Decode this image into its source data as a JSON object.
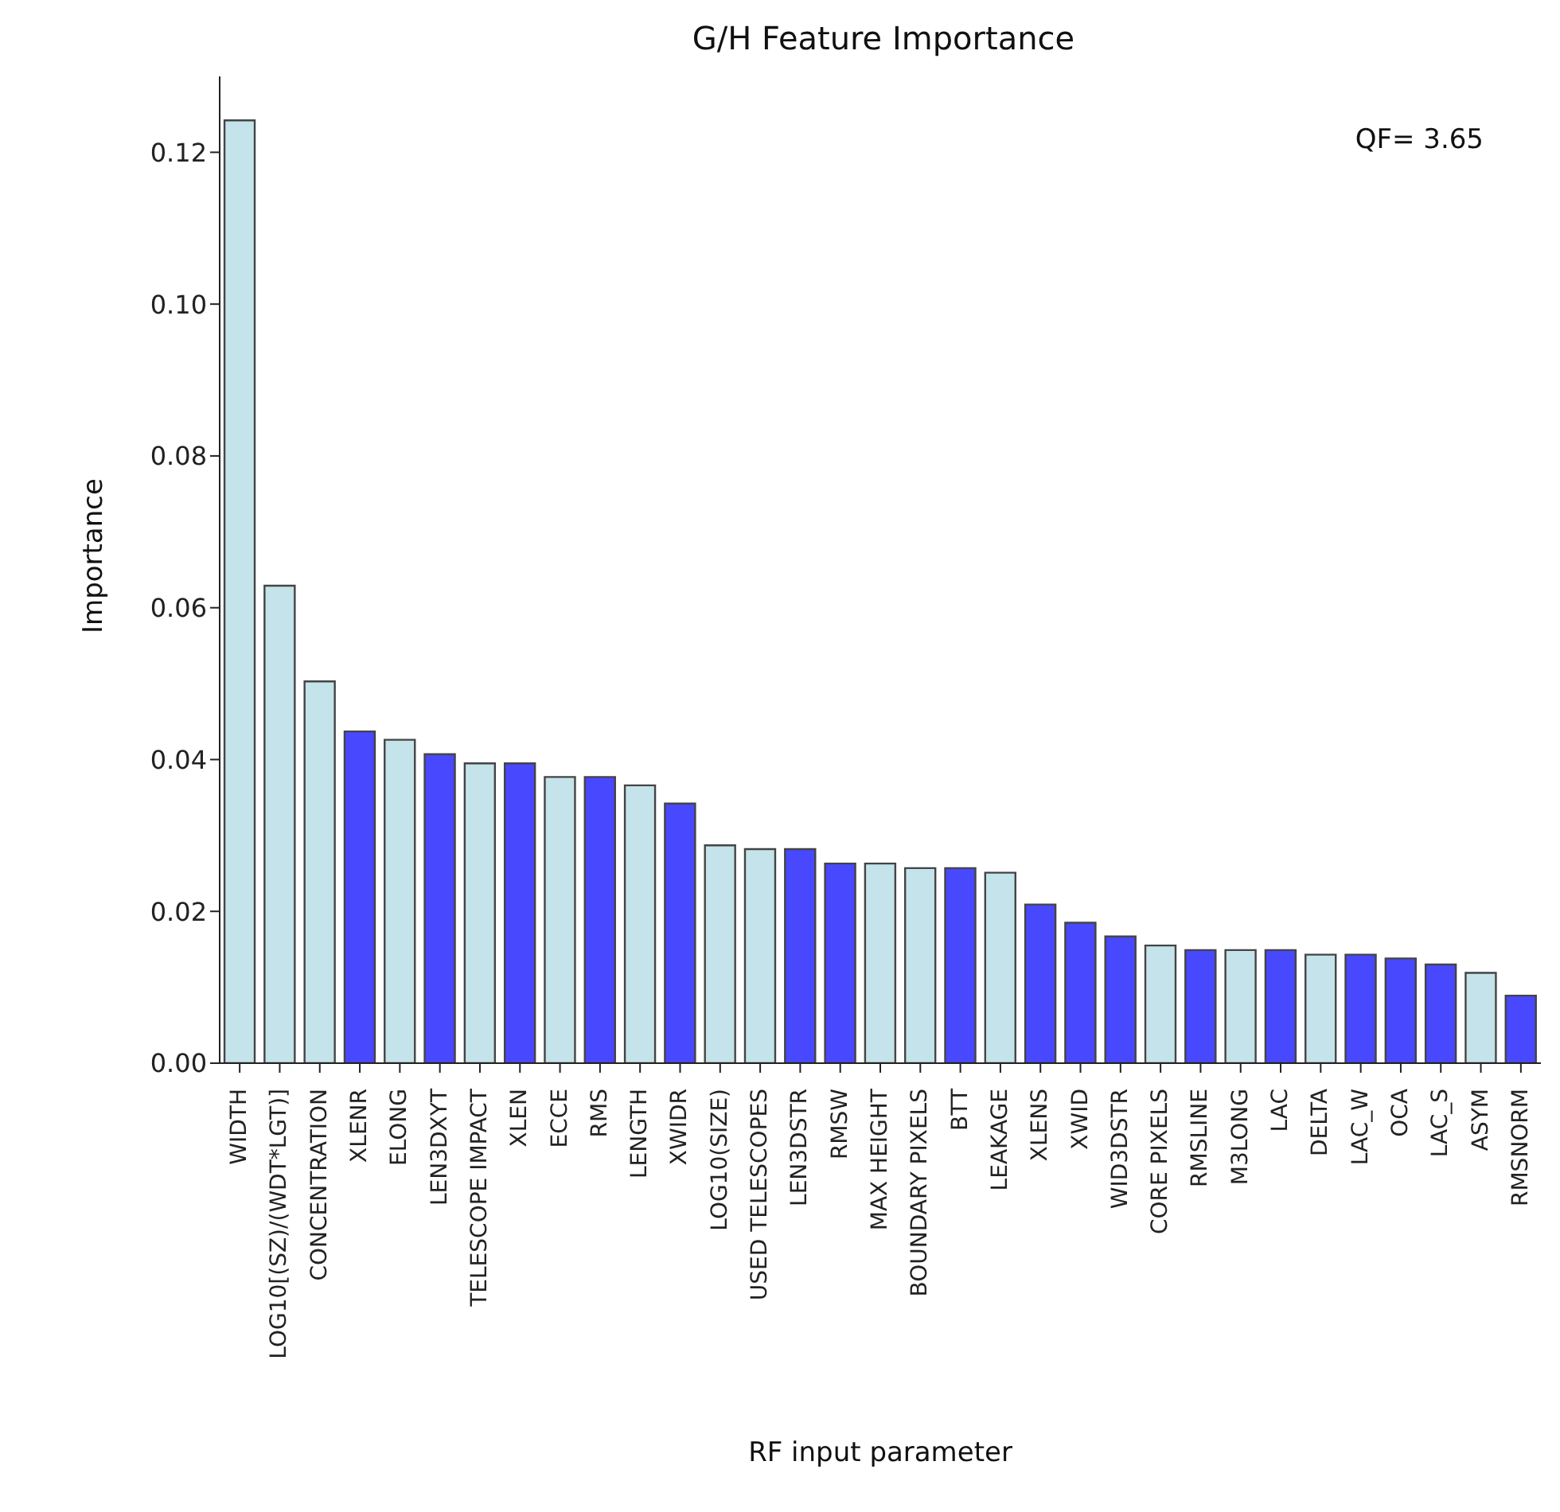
{
  "chart_data": {
    "type": "bar",
    "title": "G/H Feature Importance",
    "xlabel": "RF input parameter",
    "ylabel": "Importance",
    "categories": [
      "WIDTH",
      "LOG10[(SZ)/(WDT*LGT)]",
      "CONCENTRATION",
      "XLENR",
      "ELONG",
      "LEN3DXYT",
      "TELESCOPE IMPACT",
      "XLEN",
      "ECCE",
      "RMS",
      "LENGTH",
      "XWIDR",
      "LOG10(SIZE)",
      "USED TELESCOPES",
      "LEN3DSTR",
      "RMSW",
      "MAX HEIGHT",
      "BOUNDARY PIXELS",
      "BTT",
      "LEAKAGE",
      "XLENS",
      "XWID",
      "WID3DSTR",
      "CORE PIXELS",
      "RMSLINE",
      "M3LONG",
      "LAC",
      "DELTA",
      "LAC_W",
      "OCA",
      "LAC_S",
      "ASYM",
      "RMSNORM"
    ],
    "values": [
      0.1242,
      0.0629,
      0.0503,
      0.0437,
      0.0426,
      0.0407,
      0.0395,
      0.0395,
      0.0377,
      0.0377,
      0.0366,
      0.0342,
      0.0287,
      0.0282,
      0.0282,
      0.0263,
      0.0263,
      0.0257,
      0.0257,
      0.0251,
      0.0209,
      0.0185,
      0.0167,
      0.0155,
      0.0149,
      0.0149,
      0.0149,
      0.0143,
      0.0143,
      0.0138,
      0.013,
      0.0119,
      0.0089
    ],
    "colors": [
      "#c4e3ea",
      "#c4e3ea",
      "#c4e3ea",
      "#4848ff",
      "#c4e3ea",
      "#4848ff",
      "#c4e3ea",
      "#4848ff",
      "#c4e3ea",
      "#4848ff",
      "#c4e3ea",
      "#4848ff",
      "#c4e3ea",
      "#c4e3ea",
      "#4848ff",
      "#4848ff",
      "#c4e3ea",
      "#c4e3ea",
      "#4848ff",
      "#c4e3ea",
      "#4848ff",
      "#4848ff",
      "#4848ff",
      "#c4e3ea",
      "#4848ff",
      "#c4e3ea",
      "#4848ff",
      "#c4e3ea",
      "#4848ff",
      "#4848ff",
      "#4848ff",
      "#c4e3ea",
      "#4848ff"
    ],
    "ylim": [
      0,
      0.13
    ],
    "yticks": [
      {
        "value": 0,
        "label": "0.00"
      },
      {
        "value": 0.02,
        "label": "0.02"
      },
      {
        "value": 0.04,
        "label": "0.04"
      },
      {
        "value": 0.06,
        "label": "0.06"
      },
      {
        "value": 0.08,
        "label": "0.08"
      },
      {
        "value": 0.1,
        "label": "0.10"
      },
      {
        "value": 0.12,
        "label": "0.12"
      }
    ],
    "annotations": [
      "QF= 3.65"
    ],
    "grid": false
  }
}
